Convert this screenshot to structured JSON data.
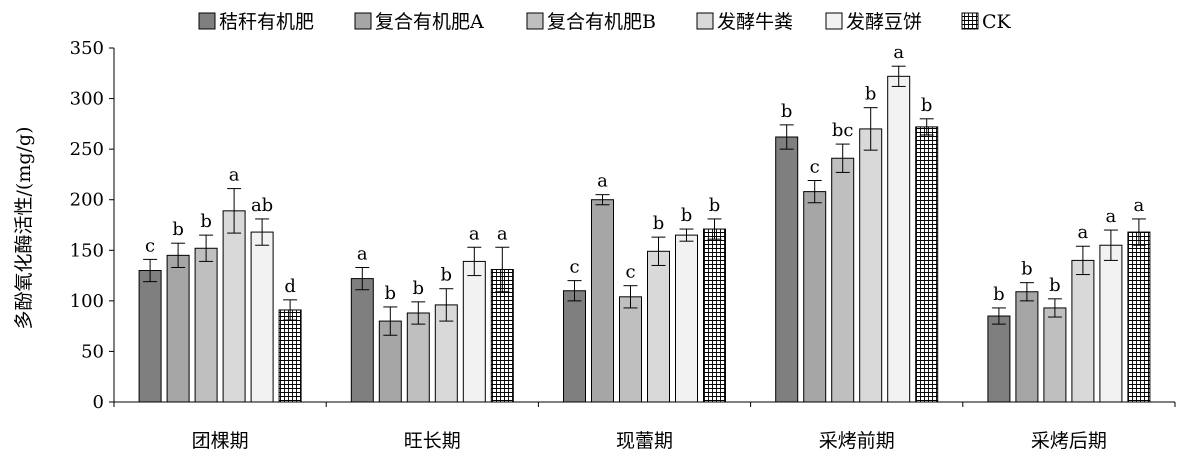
{
  "chart_data": {
    "type": "bar",
    "title": "",
    "xlabel": "",
    "ylabel": "多酚氧化酶活性/(mg/g)",
    "ylim": [
      0,
      350
    ],
    "yticks": [
      0,
      50,
      100,
      150,
      200,
      250,
      300,
      350
    ],
    "grid": false,
    "legend_position": "top",
    "categories": [
      "团棵期",
      "旺长期",
      "现蕾期",
      "采烤前期",
      "采烤后期"
    ],
    "series": [
      {
        "name": "秸秆有机肥",
        "color": "#7f7f7f",
        "pattern": "solid",
        "values": [
          130,
          122,
          110,
          262,
          85
        ],
        "errors": [
          11,
          11,
          10,
          12,
          8
        ],
        "labels": [
          "c",
          "a",
          "c",
          "b",
          "b"
        ]
      },
      {
        "name": "复合有机肥A",
        "color": "#a6a6a6",
        "pattern": "solid",
        "values": [
          145,
          80,
          200,
          208,
          109
        ],
        "errors": [
          12,
          14,
          5,
          11,
          9
        ],
        "labels": [
          "b",
          "b",
          "a",
          "c",
          "b"
        ]
      },
      {
        "name": "复合有机肥B",
        "color": "#bfbfbf",
        "pattern": "solid",
        "values": [
          152,
          88,
          104,
          241,
          93
        ],
        "errors": [
          13,
          11,
          11,
          14,
          9
        ],
        "labels": [
          "b",
          "b",
          "c",
          "bc",
          "b"
        ]
      },
      {
        "name": "发酵牛粪",
        "color": "#d9d9d9",
        "pattern": "solid",
        "values": [
          189,
          96,
          149,
          270,
          140
        ],
        "errors": [
          22,
          16,
          14,
          21,
          14
        ],
        "labels": [
          "a",
          "b",
          "b",
          "b",
          "a"
        ]
      },
      {
        "name": "发酵豆饼",
        "color": "#f2f2f2",
        "pattern": "solid",
        "values": [
          168,
          139,
          165,
          322,
          155
        ],
        "errors": [
          13,
          14,
          6,
          10,
          15
        ],
        "labels": [
          "ab",
          "a",
          "b",
          "a",
          "a"
        ]
      },
      {
        "name": "CK",
        "color": "#ffffff",
        "pattern": "grid",
        "values": [
          91,
          131,
          171,
          272,
          168
        ],
        "errors": [
          10,
          22,
          10,
          8,
          13
        ],
        "labels": [
          "d",
          "a",
          "b",
          "b",
          "a"
        ]
      }
    ]
  }
}
